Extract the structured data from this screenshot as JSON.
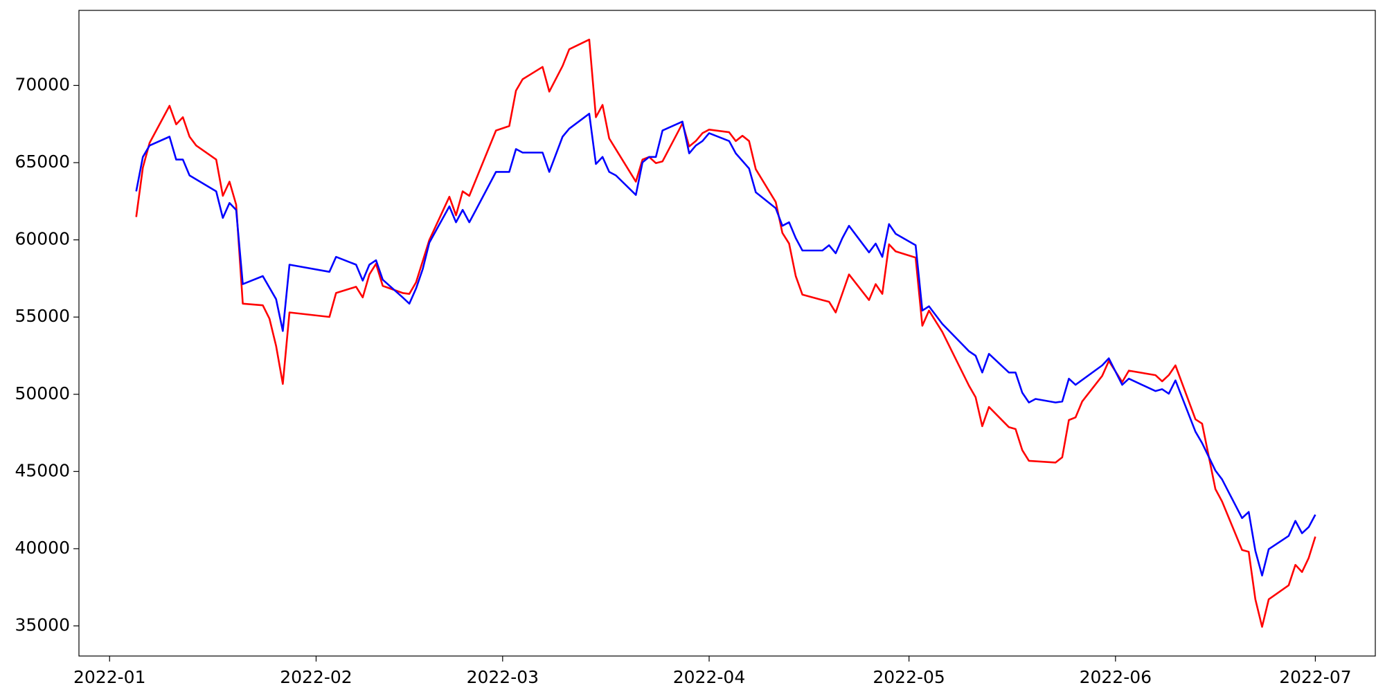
{
  "chart_data": {
    "type": "line",
    "xlim": [
      -4.6,
      190
    ],
    "ylim": [
      33050,
      74860
    ],
    "xticks": [
      {
        "value": 0,
        "label": "2022-01"
      },
      {
        "value": 31,
        "label": "2022-02"
      },
      {
        "value": 59,
        "label": "2022-03"
      },
      {
        "value": 90,
        "label": "2022-04"
      },
      {
        "value": 120,
        "label": "2022-05"
      },
      {
        "value": 151,
        "label": "2022-06"
      },
      {
        "value": 181,
        "label": "2022-07"
      }
    ],
    "yticks": [
      35000,
      40000,
      45000,
      50000,
      55000,
      60000,
      65000,
      70000
    ],
    "series": [
      {
        "color": "#ff0000",
        "x": [
          4,
          5,
          6,
          9,
          10,
          11,
          12,
          13,
          16,
          17,
          18,
          19,
          20,
          23,
          24,
          25,
          26,
          27,
          33,
          34,
          37,
          38,
          39,
          40,
          41,
          44,
          45,
          46,
          48,
          51,
          52,
          53,
          54,
          58,
          60,
          61,
          62,
          65,
          66,
          68,
          69,
          72,
          73,
          74,
          75,
          79,
          80,
          81,
          82,
          83,
          86,
          87,
          88,
          89,
          90,
          93,
          94,
          95,
          96,
          97,
          100,
          101,
          102,
          103,
          104,
          107,
          108,
          109,
          111,
          114,
          115,
          116,
          117,
          118,
          121,
          122,
          123,
          125,
          129,
          130,
          131,
          132,
          135,
          136,
          137,
          138,
          142,
          143,
          144,
          145,
          146,
          149,
          150,
          152,
          153,
          157,
          158,
          159,
          160,
          163,
          164,
          166,
          167,
          170,
          171,
          172,
          173,
          174,
          177,
          178,
          179,
          180,
          181
        ],
        "values": [
          61480,
          64680,
          66280,
          68680,
          67480,
          67940,
          66680,
          66110,
          65200,
          62850,
          63770,
          62280,
          55870,
          55760,
          54900,
          53130,
          50670,
          55300,
          55010,
          56560,
          56960,
          56270,
          57760,
          58450,
          57020,
          56560,
          56500,
          57250,
          59990,
          62790,
          61590,
          63140,
          62850,
          67080,
          67370,
          69660,
          70400,
          71200,
          69600,
          71260,
          72340,
          72970,
          67940,
          68740,
          66570,
          63770,
          65200,
          65370,
          64970,
          65080,
          67540,
          66050,
          66400,
          66910,
          67140,
          66970,
          66400,
          66740,
          66400,
          64570,
          62450,
          60450,
          59760,
          57650,
          56450,
          56100,
          55990,
          55300,
          57760,
          56100,
          57130,
          56500,
          59710,
          59250,
          58850,
          54440,
          55420,
          54040,
          50560,
          49810,
          47930,
          49180,
          47870,
          47750,
          46380,
          45690,
          45580,
          45920,
          48330,
          48500,
          49530,
          51190,
          52160,
          50790,
          51530,
          51240,
          50840,
          51240,
          51870,
          48380,
          48100,
          43860,
          43060,
          39920,
          39800,
          36720,
          34940,
          36720,
          37630,
          38950,
          38490,
          39400,
          40780
        ]
      },
      {
        "color": "#0000ff",
        "x": [
          4,
          5,
          6,
          9,
          10,
          11,
          12,
          16,
          17,
          18,
          19,
          20,
          23,
          25,
          26,
          27,
          33,
          34,
          37,
          38,
          39,
          40,
          41,
          44,
          45,
          46,
          47,
          48,
          51,
          52,
          53,
          54,
          55,
          58,
          60,
          61,
          62,
          65,
          66,
          68,
          69,
          72,
          73,
          74,
          75,
          76,
          79,
          80,
          81,
          82,
          83,
          86,
          87,
          88,
          89,
          90,
          93,
          94,
          96,
          97,
          100,
          101,
          102,
          103,
          104,
          107,
          108,
          109,
          110,
          111,
          114,
          115,
          116,
          117,
          118,
          121,
          122,
          123,
          125,
          129,
          130,
          131,
          132,
          135,
          136,
          137,
          138,
          139,
          142,
          143,
          144,
          145,
          149,
          150,
          152,
          153,
          157,
          158,
          159,
          160,
          163,
          164,
          166,
          167,
          170,
          171,
          172,
          173,
          174,
          177,
          178,
          179,
          180,
          181
        ],
        "values": [
          63140,
          65370,
          66110,
          66680,
          65200,
          65200,
          64170,
          63140,
          61420,
          62390,
          61940,
          57130,
          57650,
          56160,
          54100,
          58390,
          57930,
          58900,
          58390,
          57360,
          58390,
          58680,
          57420,
          56270,
          55870,
          56850,
          58100,
          59820,
          62170,
          61140,
          61940,
          61140,
          61940,
          64400,
          64400,
          65880,
          65650,
          65650,
          64400,
          66680,
          67200,
          68170,
          64910,
          65370,
          64400,
          64170,
          62910,
          65020,
          65370,
          65370,
          67080,
          67660,
          65600,
          66110,
          66400,
          66910,
          66400,
          65600,
          64620,
          63080,
          62050,
          60910,
          61140,
          60110,
          59310,
          59310,
          59650,
          59130,
          60110,
          60910,
          59190,
          59760,
          58900,
          61020,
          60390,
          59650,
          55420,
          55700,
          54560,
          52790,
          52500,
          51410,
          52620,
          51410,
          51410,
          50100,
          49470,
          49700,
          49470,
          49530,
          51010,
          50610,
          51870,
          52330,
          50610,
          51010,
          50210,
          50330,
          50040,
          50900,
          47580,
          46840,
          45060,
          44490,
          41980,
          42380,
          39860,
          38260,
          39970,
          40830,
          41800,
          41000,
          41400,
          42200
        ]
      }
    ]
  }
}
